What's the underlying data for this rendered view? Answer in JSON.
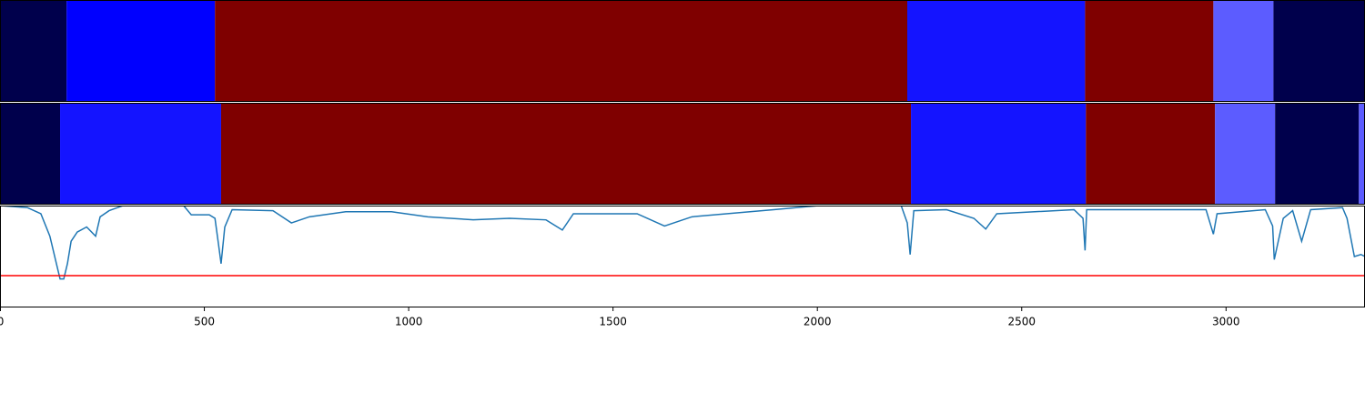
{
  "chart_data": {
    "type": "segmentation",
    "xlim": [
      0,
      3340
    ],
    "xticks": [
      0,
      500,
      1000,
      1500,
      2000,
      2500,
      3000
    ],
    "strips": [
      {
        "bounds": [
          0,
          163,
          526,
          2220,
          2655,
          2969,
          3116,
          3340
        ],
        "colors": [
          "#00004c",
          "#0000ff",
          "#7f0000",
          "#1414ff",
          "#7f0000",
          "#5c5cff",
          "#00004c"
        ]
      },
      {
        "bounds": [
          0,
          147,
          541,
          2229,
          2657,
          2973,
          3120,
          3325,
          3340
        ],
        "colors": [
          "#00004c",
          "#1414ff",
          "#7f0000",
          "#1414ff",
          "#7f0000",
          "#5c5cff",
          "#00004c",
          "#5c5cff"
        ]
      }
    ],
    "ylim": [
      0,
      1
    ],
    "series": [
      {
        "color": "#1f77b4",
        "x": [
          0,
          67,
          100,
          122,
          138,
          147,
          156,
          165,
          174,
          189,
          212,
          234,
          245,
          267,
          301,
          445,
          468,
          512,
          526,
          535,
          541,
          550,
          568,
          668,
          713,
          757,
          846,
          958,
          1047,
          1158,
          1247,
          1336,
          1376,
          1403,
          1559,
          1626,
          1693,
          1893,
          2004,
          2205,
          2220,
          2227,
          2236,
          2316,
          2383,
          2412,
          2439,
          2628,
          2650,
          2655,
          2659,
          2951,
          2969,
          2978,
          3096,
          3114,
          3118,
          3140,
          3163,
          3185,
          3207,
          3285,
          3296,
          3314,
          3330,
          3340
        ],
        "values": [
          1.0,
          0.98,
          0.92,
          0.7,
          0.43,
          0.28,
          0.28,
          0.43,
          0.65,
          0.74,
          0.79,
          0.7,
          0.89,
          0.95,
          1.0,
          1.02,
          0.91,
          0.91,
          0.875,
          0.61,
          0.43,
          0.79,
          0.96,
          0.95,
          0.83,
          0.89,
          0.94,
          0.94,
          0.89,
          0.86,
          0.875,
          0.86,
          0.76,
          0.92,
          0.92,
          0.8,
          0.89,
          0.96,
          1.0,
          1.0,
          0.83,
          0.52,
          0.95,
          0.96,
          0.875,
          0.77,
          0.92,
          0.96,
          0.875,
          0.56,
          0.96,
          0.96,
          0.72,
          0.92,
          0.96,
          0.8,
          0.47,
          0.875,
          0.95,
          0.65,
          0.96,
          0.98,
          0.875,
          0.5,
          0.52,
          0.5
        ]
      }
    ],
    "threshold": 0.3125,
    "threshold_color": "#ff0000"
  }
}
